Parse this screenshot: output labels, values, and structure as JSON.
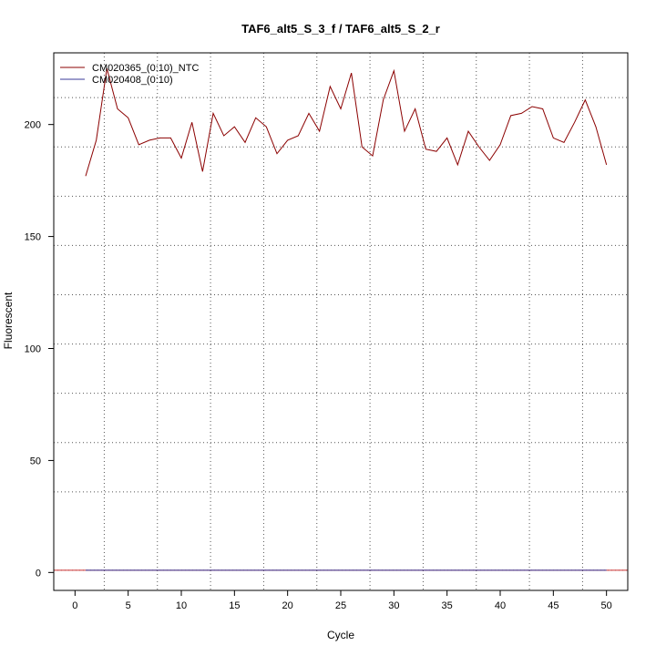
{
  "chart_data": {
    "type": "line",
    "title": "TAF6_alt5_S_3_f / TAF6_alt5_S_2_r",
    "xlabel": "Cycle",
    "ylabel": "Fluorescent",
    "xlim": [
      -2,
      52
    ],
    "ylim": [
      -8,
      232
    ],
    "x_ticks": [
      0,
      5,
      10,
      15,
      20,
      25,
      30,
      35,
      40,
      45,
      50
    ],
    "y_ticks": [
      0,
      50,
      100,
      150,
      200
    ],
    "x_grid_dotted": [
      2.75,
      7.75,
      12.75,
      17.75,
      22.75,
      27.75,
      32.75,
      37.75,
      42.75,
      47.75
    ],
    "y_grid_dotted": [
      1,
      36,
      58,
      80,
      102,
      124,
      146,
      168,
      190,
      212
    ],
    "grid": true,
    "legend_position": "top-left",
    "colors": {
      "ntc": "#8b0000",
      "sample": "#3a3a9a",
      "baseline": "#cc3333"
    },
    "series": [
      {
        "name": "CM020365_(0:10)_NTC",
        "color": "#8b0000",
        "x": [
          1,
          2,
          3,
          4,
          5,
          6,
          7,
          8,
          9,
          10,
          11,
          12,
          13,
          14,
          15,
          16,
          17,
          18,
          19,
          20,
          21,
          22,
          23,
          24,
          25,
          26,
          27,
          28,
          29,
          30,
          31,
          32,
          33,
          34,
          35,
          36,
          37,
          38,
          39,
          40,
          41,
          42,
          43,
          44,
          45,
          46,
          47,
          48,
          49,
          50
        ],
        "values": [
          177,
          193,
          225,
          207,
          203,
          191,
          193,
          194,
          194,
          185,
          201,
          179,
          205,
          195,
          199,
          192,
          203,
          199,
          187,
          193,
          195,
          205,
          197,
          217,
          207,
          223,
          190,
          186,
          211,
          224,
          197,
          207,
          189,
          188,
          194,
          182,
          197,
          190,
          184,
          191,
          204,
          205,
          208,
          207,
          194,
          192,
          201,
          211,
          199,
          182
        ]
      },
      {
        "name": "CM020408_(0:10)",
        "color": "#3a3a9a",
        "x": [
          1,
          50
        ],
        "values": [
          1,
          1
        ]
      }
    ]
  }
}
